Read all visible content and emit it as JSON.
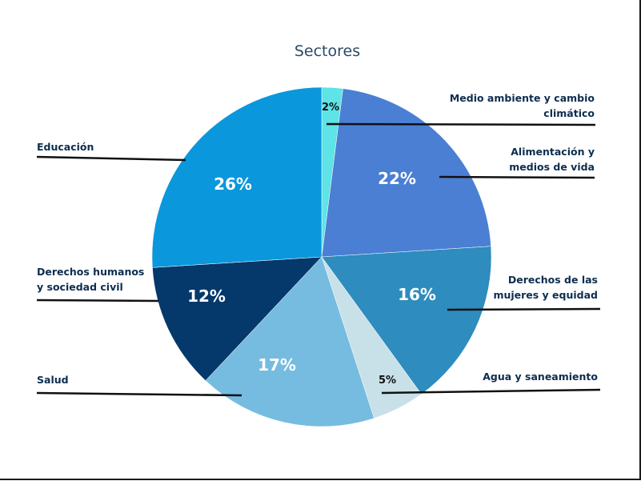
{
  "chart_data": {
    "type": "pie",
    "title": "Sectores",
    "slices": [
      {
        "name": "Medio ambiente y cambio climático",
        "value": 2,
        "label": "2%",
        "color": "#5ee3e6"
      },
      {
        "name": "Alimentación y medios de vida",
        "value": 22,
        "label": "22%",
        "color": "#4a7fd4"
      },
      {
        "name": "Derechos de las mujeres y equidad",
        "value": 16,
        "label": "16%",
        "color": "#2e8cbe"
      },
      {
        "name": "Agua y saneamiento",
        "value": 5,
        "label": "5%",
        "color": "#c8e0e8"
      },
      {
        "name": "Salud",
        "value": 17,
        "label": "17%",
        "color": "#76bce0"
      },
      {
        "name": "Derechos humanos y sociedad civil",
        "value": 12,
        "label": "12%",
        "color": "#05386b"
      },
      {
        "name": "Educación",
        "value": 26,
        "label": "26%",
        "color": "#0a97dc"
      }
    ],
    "category_labels": [
      {
        "lines": [
          "Medio ambiente y cambio",
          "climático"
        ],
        "align": "right"
      },
      {
        "lines": [
          "Alimentación y",
          "medios de vida"
        ],
        "align": "right"
      },
      {
        "lines": [
          "Derechos de las",
          "mujeres y equidad"
        ],
        "align": "right"
      },
      {
        "lines": [
          "Agua y saneamiento"
        ],
        "align": "right"
      },
      {
        "lines": [
          "Salud"
        ],
        "align": "left"
      },
      {
        "lines": [
          "Derechos humanos",
          "y sociedad civil"
        ],
        "align": "left"
      },
      {
        "lines": [
          "Educación"
        ],
        "align": "left"
      }
    ]
  }
}
